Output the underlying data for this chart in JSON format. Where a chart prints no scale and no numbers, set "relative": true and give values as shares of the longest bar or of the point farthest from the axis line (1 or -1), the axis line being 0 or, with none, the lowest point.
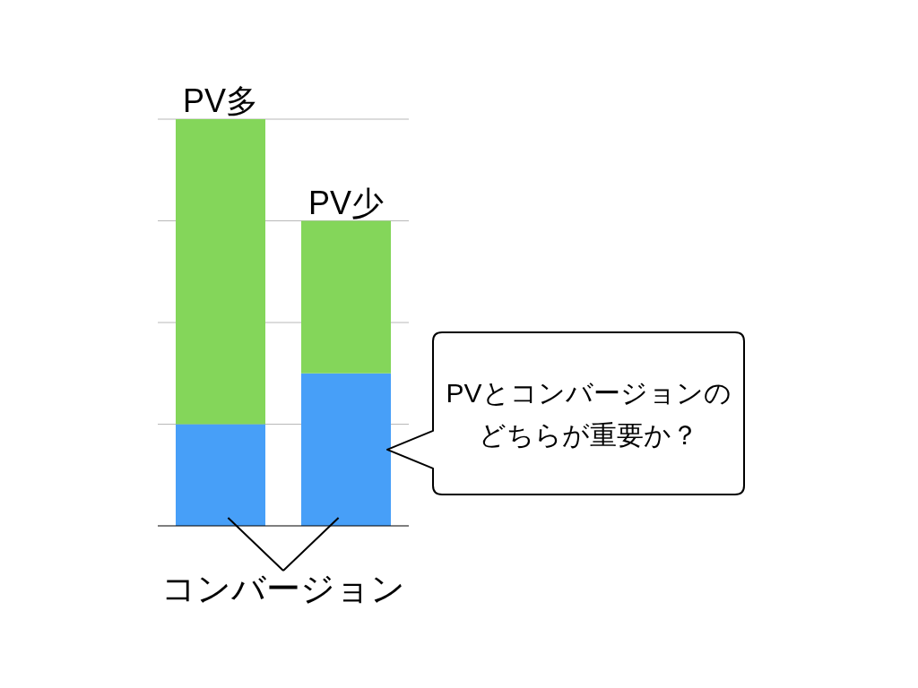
{
  "chart_data": {
    "type": "bar",
    "stacked": true,
    "relative": true,
    "categories": [
      "PV多",
      "PV少"
    ],
    "series": [
      {
        "name": "コンバージョン",
        "color": "#479ff8",
        "values": [
          0.25,
          0.375
        ]
      },
      {
        "color": "#84d65a",
        "values": [
          0.75,
          0.375
        ]
      }
    ],
    "grid": "y",
    "legend": false,
    "annotations": [
      "PVとコンバージョンのどちらが重要か？"
    ]
  }
}
